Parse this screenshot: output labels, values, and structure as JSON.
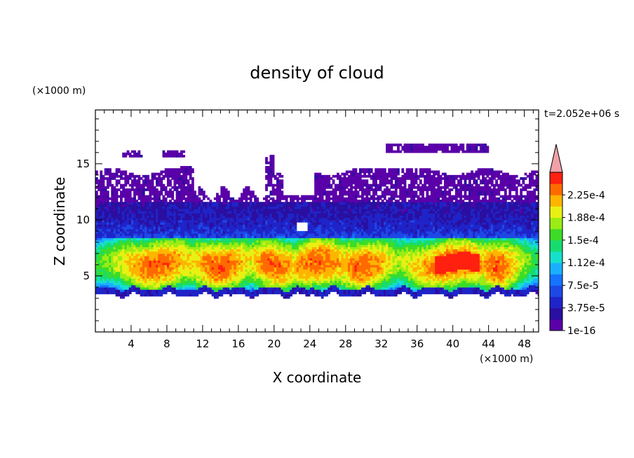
{
  "chart_data": {
    "type": "heatmap",
    "title": "density of cloud",
    "xlabel": "X coordinate",
    "ylabel": "Z coordinate",
    "x_unit": "(×1000 m)",
    "y_unit": "(×1000 m)",
    "time_label": "t=2.052e+06 s",
    "xlim": [
      0,
      49.6
    ],
    "ylim": [
      0,
      19.8
    ],
    "x_ticks": [
      4,
      8,
      12,
      16,
      20,
      24,
      28,
      32,
      36,
      40,
      44,
      48
    ],
    "y_ticks": [
      5,
      10,
      15
    ],
    "colorbar": {
      "labels": [
        "1e-16",
        "3.75e-5",
        "7.5e-5",
        "1.12e-4",
        "1.5e-4",
        "1.88e-4",
        "2.25e-4"
      ],
      "levels": [
        0,
        1.88e-05,
        3.75e-05,
        5.63e-05,
        7.5e-05,
        9.38e-05,
        0.000112,
        0.000131,
        0.00015,
        0.000169,
        0.000188,
        0.000206,
        0.000225,
        0.000244
      ],
      "colors": [
        "#5a00a8",
        "#2a0fa0",
        "#1f24c8",
        "#1e48e6",
        "#1574ff",
        "#1bb0ff",
        "#16e0cc",
        "#16dc70",
        "#3cdc28",
        "#9aec14",
        "#e8f014",
        "#ffb400",
        "#ff6a00",
        "#ff2010"
      ],
      "extend_color": "#f2a0a8",
      "extend": "max"
    },
    "field_description_cells": {
      "cloud_base_km": 3.3,
      "dense_layer_km": [
        5,
        7.5
      ],
      "upper_layer_top_km": 14.3,
      "max_value_location": {
        "x": 40,
        "z": 6.8,
        "value": 0.000225
      }
    }
  }
}
